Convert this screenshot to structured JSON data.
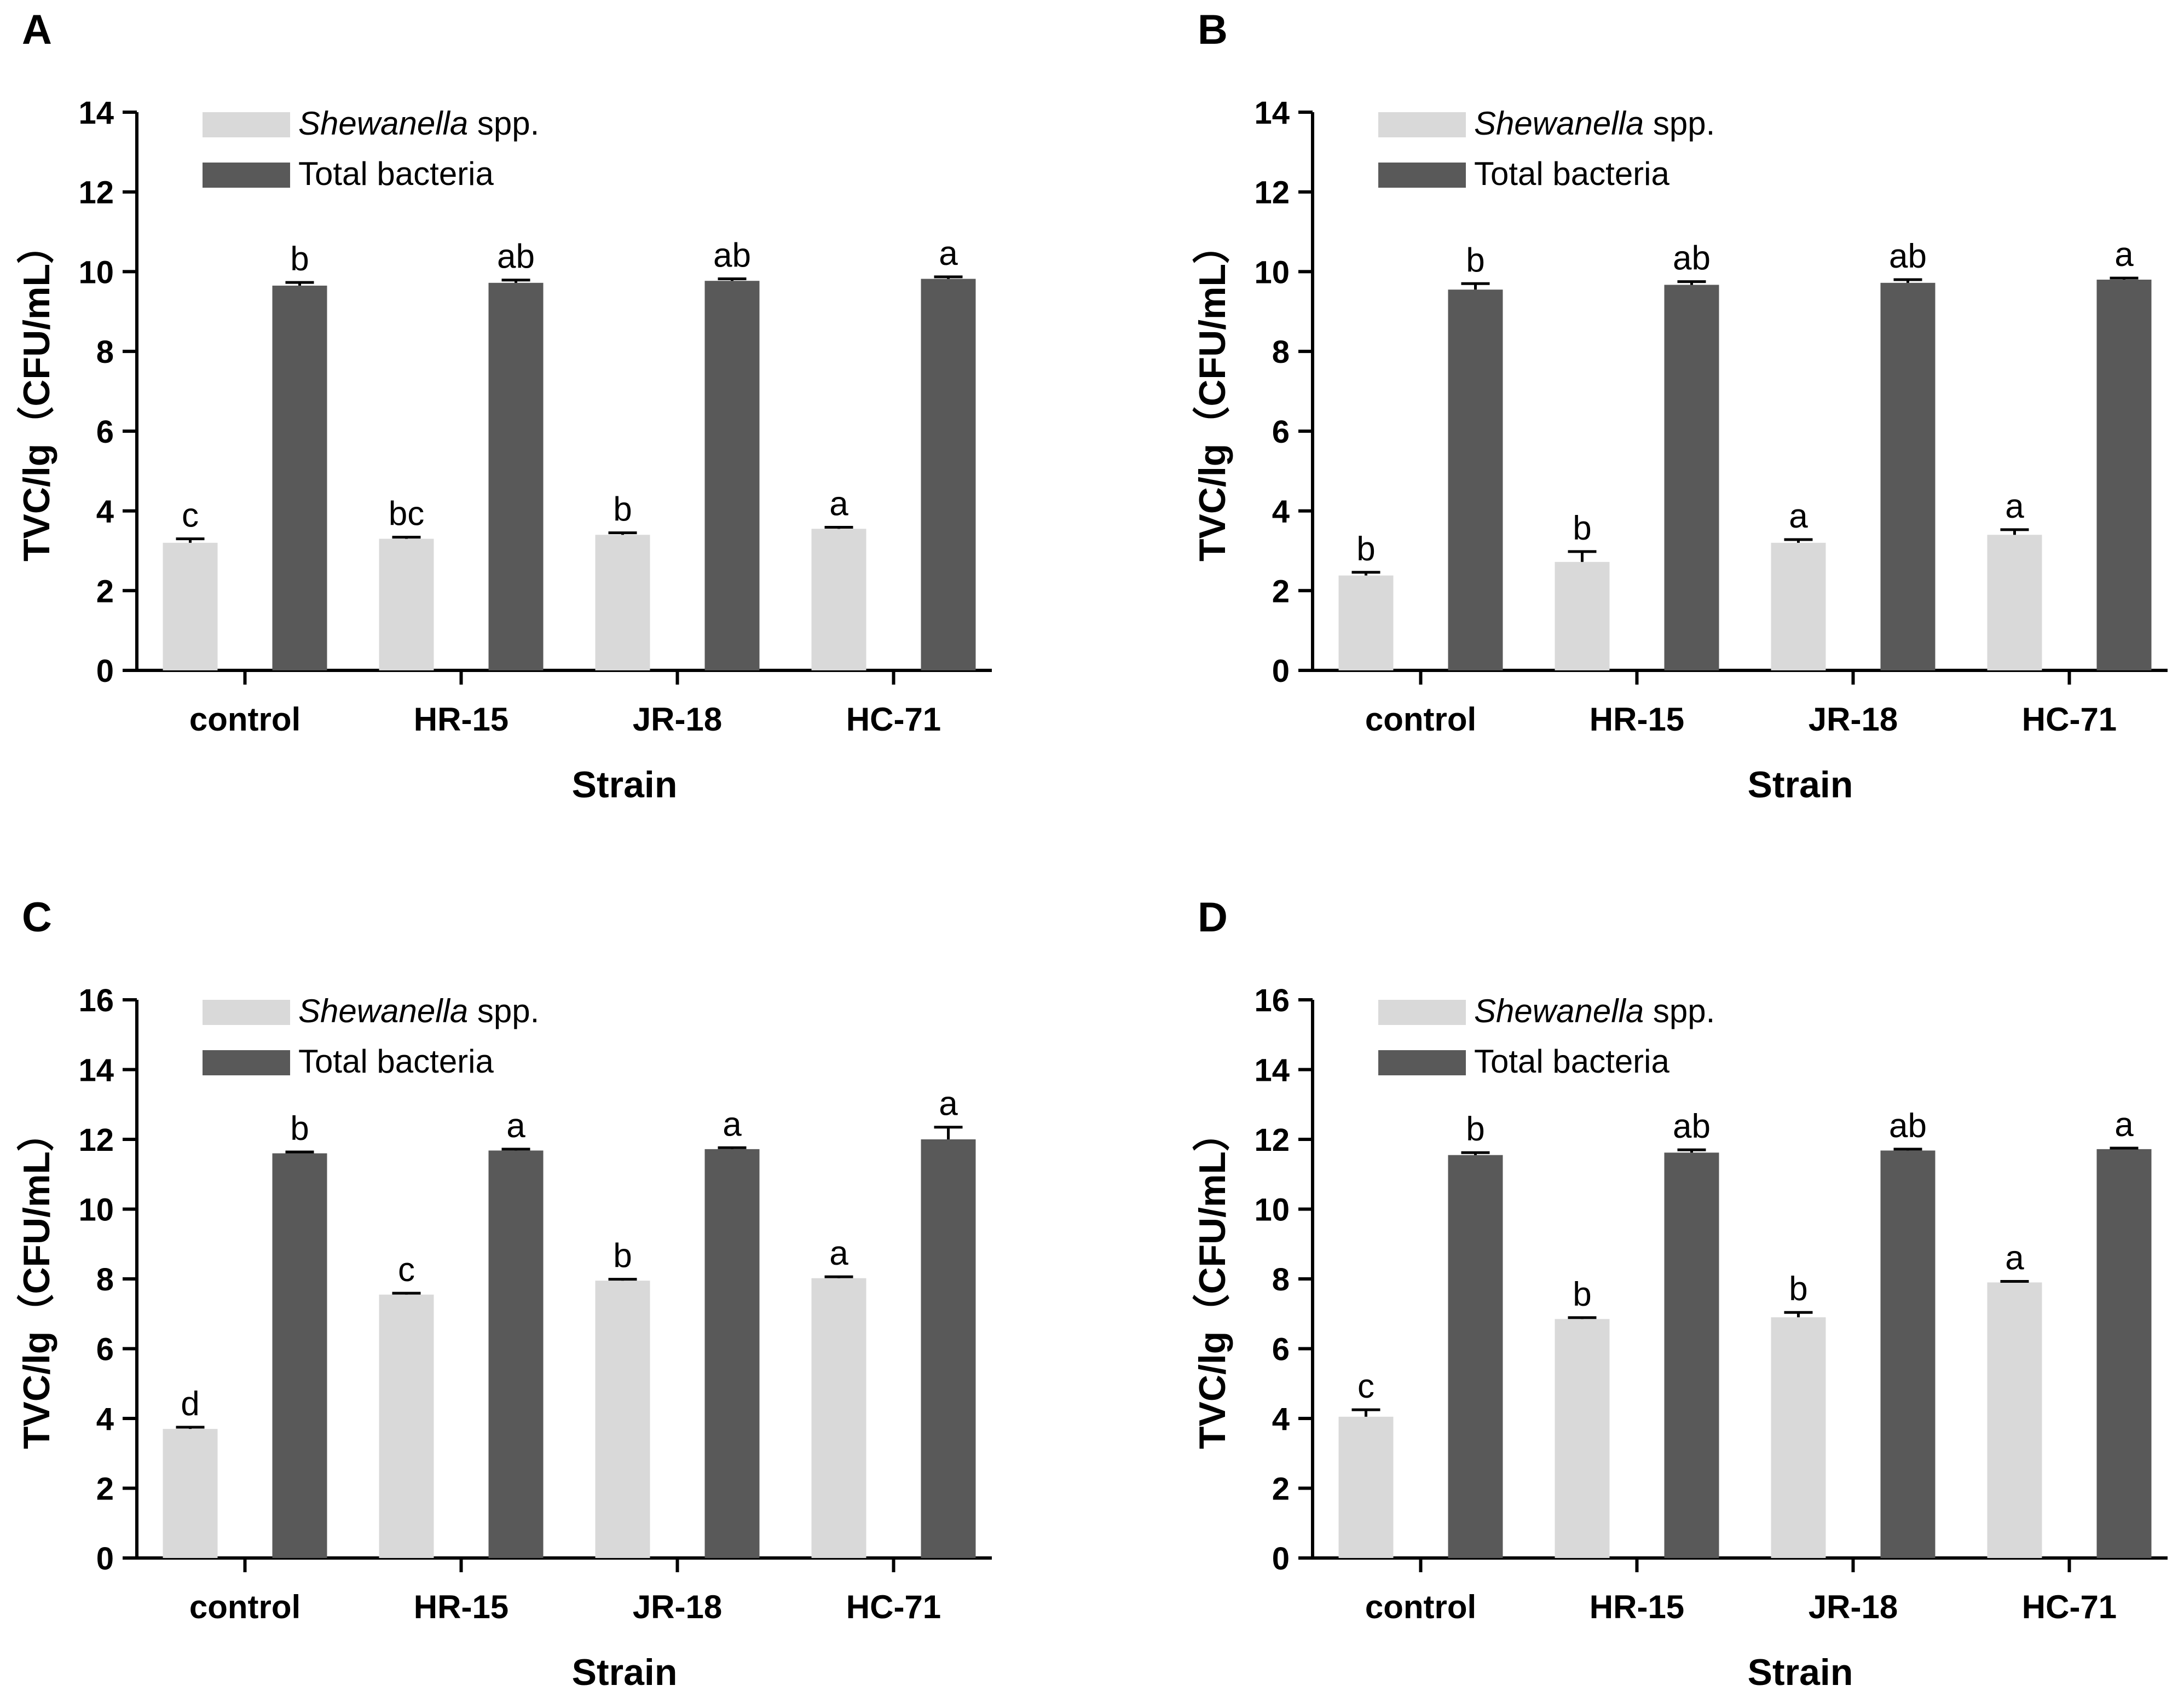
{
  "figure": {
    "legend_shewanella_italic": "Shewanella",
    "legend_shewanella_rest": " spp."
  },
  "chart_data": [
    {
      "panel": "A",
      "type": "bar",
      "xlabel": "Strain",
      "ylabel": "TVC/lg（CFU/mL）",
      "ylim": [
        0,
        14
      ],
      "yticks": [
        0,
        2,
        4,
        6,
        8,
        10,
        12,
        14
      ],
      "categories": [
        "control",
        "HR-15",
        "JR-18",
        "HC-71"
      ],
      "legend": [
        "Shewanella spp.",
        "Total bacteria"
      ],
      "legend_position": "top-left",
      "series": [
        {
          "name": "Shewanella spp.",
          "color": "#d9d9d9",
          "values": [
            3.2,
            3.3,
            3.4,
            3.55
          ],
          "errors": [
            0.1,
            0.04,
            0.05,
            0.04
          ],
          "labels": [
            "c",
            "bc",
            "b",
            "a"
          ]
        },
        {
          "name": "Total bacteria",
          "color": "#595959",
          "values": [
            9.65,
            9.72,
            9.77,
            9.82
          ],
          "errors": [
            0.08,
            0.07,
            0.05,
            0.05
          ],
          "labels": [
            "b",
            "ab",
            "ab",
            "a"
          ]
        }
      ]
    },
    {
      "panel": "B",
      "type": "bar",
      "xlabel": "Strain",
      "ylabel": "TVC/lg（CFU/mL）",
      "ylim": [
        0,
        14
      ],
      "yticks": [
        0,
        2,
        4,
        6,
        8,
        10,
        12,
        14
      ],
      "categories": [
        "control",
        "HR-15",
        "JR-18",
        "HC-71"
      ],
      "legend": [
        "Shewanella spp.",
        "Total bacteria"
      ],
      "legend_position": "top-left",
      "series": [
        {
          "name": "Shewanella spp.",
          "color": "#d9d9d9",
          "values": [
            2.38,
            2.72,
            3.2,
            3.4
          ],
          "errors": [
            0.08,
            0.26,
            0.08,
            0.13
          ],
          "labels": [
            "b",
            "b",
            "a",
            "a"
          ]
        },
        {
          "name": "Total bacteria",
          "color": "#595959",
          "values": [
            9.55,
            9.67,
            9.72,
            9.8
          ],
          "errors": [
            0.15,
            0.08,
            0.08,
            0.04
          ],
          "labels": [
            "b",
            "ab",
            "ab",
            "a"
          ]
        }
      ]
    },
    {
      "panel": "C",
      "type": "bar",
      "xlabel": "Strain",
      "ylabel": "TVC/lg（CFU/mL）",
      "ylim": [
        0,
        16
      ],
      "yticks": [
        0,
        2,
        4,
        6,
        8,
        10,
        12,
        14,
        16
      ],
      "categories": [
        "control",
        "HR-15",
        "JR-18",
        "HC-71"
      ],
      "legend": [
        "Shewanella spp.",
        "Total bacteria"
      ],
      "legend_position": "top-left",
      "series": [
        {
          "name": "Shewanella spp.",
          "color": "#d9d9d9",
          "values": [
            3.7,
            7.55,
            7.95,
            8.02
          ],
          "errors": [
            0.05,
            0.04,
            0.04,
            0.04
          ],
          "labels": [
            "d",
            "c",
            "b",
            "a"
          ]
        },
        {
          "name": "Total bacteria",
          "color": "#595959",
          "values": [
            11.6,
            11.68,
            11.72,
            12.0
          ],
          "errors": [
            0.04,
            0.04,
            0.04,
            0.35
          ],
          "labels": [
            "b",
            "a",
            "a",
            "a"
          ]
        }
      ]
    },
    {
      "panel": "D",
      "type": "bar",
      "xlabel": "Strain",
      "ylabel": "TVC/lg（CFU/mL）",
      "ylim": [
        0,
        16
      ],
      "yticks": [
        0,
        2,
        4,
        6,
        8,
        10,
        12,
        14,
        16
      ],
      "categories": [
        "control",
        "HR-15",
        "JR-18",
        "HC-71"
      ],
      "legend": [
        "Shewanella spp.",
        "Total bacteria"
      ],
      "legend_position": "top-left",
      "series": [
        {
          "name": "Shewanella spp.",
          "color": "#d9d9d9",
          "values": [
            4.05,
            6.85,
            6.9,
            7.9
          ],
          "errors": [
            0.2,
            0.04,
            0.14,
            0.03
          ],
          "labels": [
            "c",
            "b",
            "b",
            "a"
          ]
        },
        {
          "name": "Total bacteria",
          "color": "#595959",
          "values": [
            11.55,
            11.62,
            11.68,
            11.72
          ],
          "errors": [
            0.07,
            0.08,
            0.04,
            0.03
          ],
          "labels": [
            "b",
            "ab",
            "ab",
            "a"
          ]
        }
      ]
    }
  ]
}
